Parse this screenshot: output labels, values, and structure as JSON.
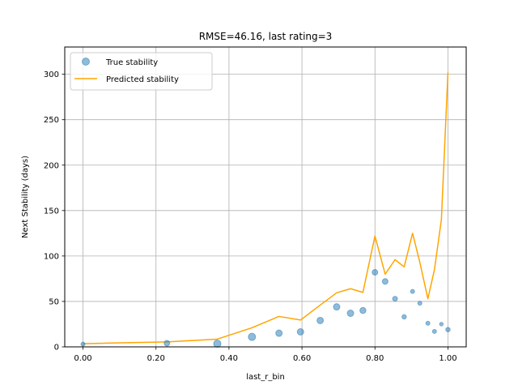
{
  "chart_data": {
    "type": "scatter",
    "title": "RMSE=46.16, last rating=3",
    "xlabel": "last_r_bin",
    "ylabel": "Next Stability (days)",
    "xlim": [
      -0.05,
      1.05
    ],
    "ylim": [
      0,
      330
    ],
    "x_ticks": [
      0.0,
      0.2,
      0.4,
      0.6,
      0.8,
      1.0
    ],
    "x_tick_labels": [
      "0.00",
      "0.20",
      "0.40",
      "0.60",
      "0.80",
      "1.00"
    ],
    "y_ticks": [
      0,
      50,
      100,
      150,
      200,
      250,
      300
    ],
    "y_tick_labels": [
      "0",
      "50",
      "100",
      "150",
      "200",
      "250",
      "300"
    ],
    "grid": true,
    "legend_position": "top-left",
    "series": [
      {
        "name": "True stability",
        "kind": "scatter",
        "color": "#1f77b4",
        "alpha": 0.5,
        "x": [
          0.0,
          0.23,
          0.368,
          0.463,
          0.537,
          0.596,
          0.65,
          0.695,
          0.733,
          0.767,
          0.8,
          0.828,
          0.855,
          0.88,
          0.903,
          0.923,
          0.945,
          0.963,
          0.982,
          1.0
        ],
        "y": [
          3,
          4,
          3.5,
          11,
          15,
          16.5,
          29,
          44,
          37,
          40,
          82,
          72,
          53,
          33,
          61,
          48,
          26,
          17,
          25,
          19
        ],
        "sizes": [
          5,
          7,
          9,
          9,
          8,
          8,
          8,
          8,
          8,
          7.5,
          7,
          7,
          6,
          5.5,
          5,
          5,
          5,
          5,
          4.5,
          5.5
        ]
      },
      {
        "name": "Predicted stability",
        "kind": "line",
        "color": "#ffa500",
        "x": [
          0.0,
          0.23,
          0.368,
          0.463,
          0.537,
          0.596,
          0.65,
          0.695,
          0.733,
          0.767,
          0.8,
          0.828,
          0.855,
          0.88,
          0.903,
          0.923,
          0.945,
          0.963,
          0.982,
          1.0
        ],
        "y": [
          3.5,
          5.5,
          8.5,
          21,
          33.5,
          29.5,
          46,
          59.5,
          64,
          60,
          122,
          80,
          96,
          88,
          125,
          93,
          53,
          85,
          140,
          302
        ]
      }
    ]
  }
}
